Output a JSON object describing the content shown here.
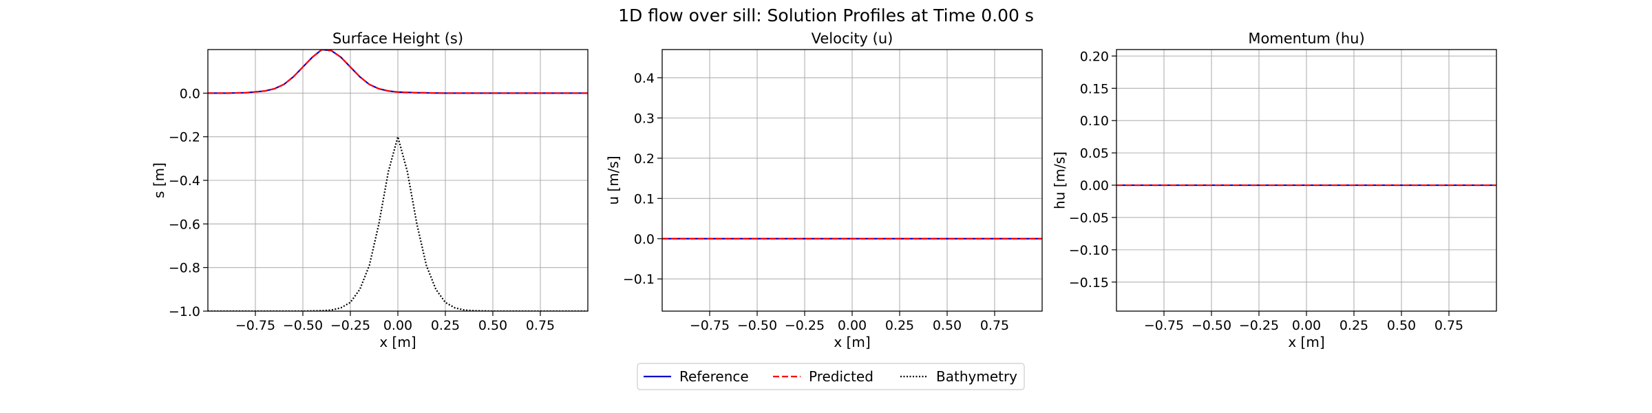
{
  "figure": {
    "suptitle": "1D flow over sill: Solution Profiles at Time 0.00 s"
  },
  "legend": {
    "placement": "bottom-center",
    "entries": [
      {
        "label": "Reference",
        "color": "#0000cc",
        "style": "solid"
      },
      {
        "label": "Predicted",
        "color": "#ff0000",
        "style": "dashed"
      },
      {
        "label": "Bathymetry",
        "color": "#000000",
        "style": "dotted"
      }
    ]
  },
  "chart_data": [
    {
      "type": "line",
      "title": "Surface Height (s)",
      "xlabel": "x [m]",
      "ylabel": "s [m]",
      "xlim": [
        -1.0,
        1.0
      ],
      "ylim": [
        -1.0,
        0.2
      ],
      "xticks": [
        -0.75,
        -0.5,
        -0.25,
        0.0,
        0.25,
        0.5,
        0.75
      ],
      "xtick_labels": [
        "−0.75",
        "−0.50",
        "−0.25",
        "0.00",
        "0.25",
        "0.50",
        "0.75"
      ],
      "yticks": [
        0.0,
        -0.2,
        -0.4,
        -0.6,
        -0.8,
        -1.0
      ],
      "ytick_labels": [
        "0.0",
        "−0.2",
        "−0.4",
        "−0.6",
        "−0.8",
        "−1.0"
      ],
      "grid": true,
      "series": [
        {
          "name": "Reference",
          "color": "#0000cc",
          "style": "solid",
          "x": [
            -1.0,
            -0.9,
            -0.8,
            -0.7,
            -0.65,
            -0.6,
            -0.55,
            -0.5,
            -0.45,
            -0.4,
            -0.35,
            -0.3,
            -0.25,
            -0.2,
            -0.15,
            -0.1,
            -0.05,
            0.0,
            0.1,
            0.25,
            0.5,
            0.75,
            1.0
          ],
          "y": [
            0.0,
            0.0,
            0.002,
            0.01,
            0.02,
            0.04,
            0.075,
            0.12,
            0.165,
            0.2,
            0.195,
            0.165,
            0.12,
            0.075,
            0.04,
            0.02,
            0.01,
            0.005,
            0.002,
            0.0,
            0.0,
            0.0,
            0.0
          ]
        },
        {
          "name": "Predicted",
          "color": "#ff0000",
          "style": "dashed",
          "x": [
            -1.0,
            -0.9,
            -0.8,
            -0.7,
            -0.65,
            -0.6,
            -0.55,
            -0.5,
            -0.45,
            -0.4,
            -0.35,
            -0.3,
            -0.25,
            -0.2,
            -0.15,
            -0.1,
            -0.05,
            0.0,
            0.1,
            0.25,
            0.5,
            0.75,
            1.0
          ],
          "y": [
            0.0,
            0.0,
            0.002,
            0.01,
            0.02,
            0.04,
            0.075,
            0.12,
            0.165,
            0.2,
            0.195,
            0.165,
            0.12,
            0.075,
            0.04,
            0.02,
            0.01,
            0.005,
            0.002,
            0.0,
            0.0,
            0.0,
            0.0
          ]
        },
        {
          "name": "Bathymetry",
          "color": "#000000",
          "style": "dotted",
          "x": [
            -1.0,
            -0.5,
            -0.4,
            -0.35,
            -0.3,
            -0.25,
            -0.2,
            -0.15,
            -0.1,
            -0.05,
            0.0,
            0.05,
            0.1,
            0.15,
            0.2,
            0.25,
            0.3,
            0.35,
            0.4,
            0.5,
            1.0
          ],
          "y": [
            -1.0,
            -1.0,
            -0.998,
            -0.995,
            -0.985,
            -0.96,
            -0.9,
            -0.79,
            -0.6,
            -0.36,
            -0.2,
            -0.36,
            -0.6,
            -0.79,
            -0.9,
            -0.96,
            -0.985,
            -0.995,
            -0.998,
            -1.0,
            -1.0
          ]
        }
      ]
    },
    {
      "type": "line",
      "title": "Velocity (u)",
      "xlabel": "x [m]",
      "ylabel": "u [m/s]",
      "xlim": [
        -1.0,
        1.0
      ],
      "ylim": [
        -0.18,
        0.47
      ],
      "xticks": [
        -0.75,
        -0.5,
        -0.25,
        0.0,
        0.25,
        0.5,
        0.75
      ],
      "xtick_labels": [
        "−0.75",
        "−0.50",
        "−0.25",
        "0.00",
        "0.25",
        "0.50",
        "0.75"
      ],
      "yticks": [
        0.4,
        0.3,
        0.2,
        0.1,
        0.0,
        -0.1
      ],
      "ytick_labels": [
        "0.4",
        "0.3",
        "0.2",
        "0.1",
        "0.0",
        "−0.1"
      ],
      "grid": true,
      "series": [
        {
          "name": "Reference",
          "color": "#0000cc",
          "style": "solid",
          "x": [
            -1.0,
            1.0
          ],
          "y": [
            0.0,
            0.0
          ]
        },
        {
          "name": "Predicted",
          "color": "#ff0000",
          "style": "dashed",
          "x": [
            -1.0,
            1.0
          ],
          "y": [
            0.0,
            0.0
          ]
        }
      ]
    },
    {
      "type": "line",
      "title": "Momentum (hu)",
      "xlabel": "x [m]",
      "ylabel": "hu [m/s]",
      "xlim": [
        -1.0,
        1.0
      ],
      "ylim": [
        -0.195,
        0.21
      ],
      "xticks": [
        -0.75,
        -0.5,
        -0.25,
        0.0,
        0.25,
        0.5,
        0.75
      ],
      "xtick_labels": [
        "−0.75",
        "−0.50",
        "−0.25",
        "0.00",
        "0.25",
        "0.50",
        "0.75"
      ],
      "yticks": [
        0.2,
        0.15,
        0.1,
        0.05,
        0.0,
        -0.05,
        -0.1,
        -0.15
      ],
      "ytick_labels": [
        "0.20",
        "0.15",
        "0.10",
        "0.05",
        "0.00",
        "−0.05",
        "−0.10",
        "−0.15"
      ],
      "grid": true,
      "series": [
        {
          "name": "Reference",
          "color": "#0000cc",
          "style": "solid",
          "x": [
            -1.0,
            1.0
          ],
          "y": [
            0.0,
            0.0
          ]
        },
        {
          "name": "Predicted",
          "color": "#ff0000",
          "style": "dashed",
          "x": [
            -1.0,
            1.0
          ],
          "y": [
            0.0,
            0.0
          ]
        }
      ]
    }
  ]
}
